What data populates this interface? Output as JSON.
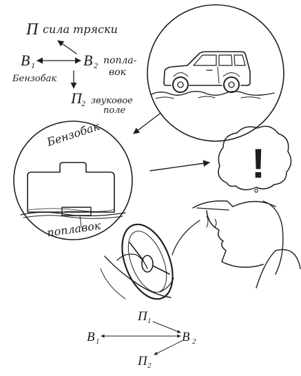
{
  "top_scheme": {
    "p": "П",
    "p_label": "сила тряски",
    "b1": "B",
    "b1_sub": "1",
    "b1_label": "Бензобак",
    "b2": "B",
    "b2_sub": "2",
    "b2_label_line1": "попла-",
    "b2_label_line2": "вок",
    "p2": "П",
    "p2_sub": "2",
    "p2_label_line1": "звуковое",
    "p2_label_line2": "поле"
  },
  "tank_circle": {
    "title": "Бензобак",
    "float_label": "поплавок"
  },
  "thought": {
    "symbol": "!"
  },
  "bottom_scheme": {
    "p1": "П",
    "p1_sub": "1",
    "b1": "B",
    "b1_sub": "1",
    "b2": "B",
    "b2_sub": "2",
    "p2": "П",
    "p2_sub": "2"
  }
}
